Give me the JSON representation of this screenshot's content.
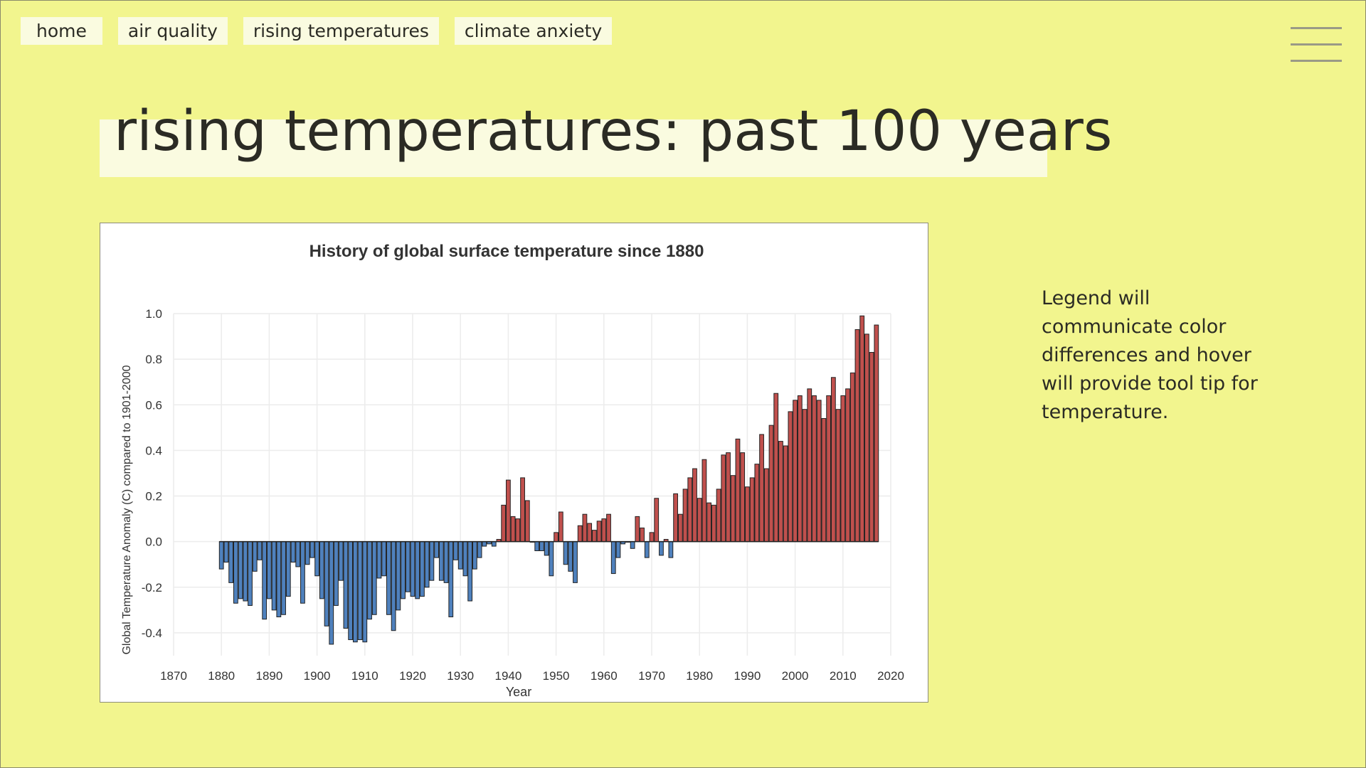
{
  "nav": {
    "items": [
      {
        "label": "home"
      },
      {
        "label": "air quality"
      },
      {
        "label": "rising temperatures"
      },
      {
        "label": "climate anxiety"
      }
    ]
  },
  "menu_icon": "hamburger-menu-icon",
  "page_title": "rising temperatures: past 100 years",
  "note": "Legend will communicate color differences and hover will provide tool tip for temperature.",
  "colors": {
    "background": "#f2f58e",
    "label_bg": "#fafbe0",
    "positive_bar": "#c0504d",
    "negative_bar": "#4f81bd"
  },
  "chart_data": {
    "type": "bar",
    "title": "History of global surface temperature since 1880",
    "xlabel": "Year",
    "ylabel": "Global Temperature Anomaly (C) compared to 1901-2000",
    "xlim": [
      1870,
      2020
    ],
    "ylim": [
      -0.5,
      1.0
    ],
    "x_ticks": [
      1870,
      1880,
      1890,
      1900,
      1910,
      1920,
      1930,
      1940,
      1950,
      1960,
      1970,
      1980,
      1990,
      2000,
      2010,
      2020
    ],
    "y_ticks": [
      "1.0",
      "0.8",
      "0.6",
      "0.4",
      "0.2",
      "0.0",
      "-0.2",
      "-0.4"
    ],
    "grid": true,
    "start_year": 1880,
    "values": [
      -0.12,
      -0.09,
      -0.18,
      -0.27,
      -0.25,
      -0.26,
      -0.28,
      -0.13,
      -0.08,
      -0.34,
      -0.25,
      -0.3,
      -0.33,
      -0.32,
      -0.24,
      -0.09,
      -0.11,
      -0.27,
      -0.1,
      -0.07,
      -0.15,
      -0.25,
      -0.37,
      -0.45,
      -0.28,
      -0.17,
      -0.38,
      -0.43,
      -0.44,
      -0.43,
      -0.44,
      -0.34,
      -0.32,
      -0.16,
      -0.15,
      -0.32,
      -0.39,
      -0.3,
      -0.25,
      -0.22,
      -0.24,
      -0.25,
      -0.24,
      -0.2,
      -0.17,
      -0.07,
      -0.17,
      -0.18,
      -0.33,
      -0.08,
      -0.12,
      -0.15,
      -0.26,
      -0.12,
      -0.07,
      -0.02,
      -0.01,
      -0.02,
      0.01,
      0.16,
      0.27,
      0.11,
      0.1,
      0.28,
      0.18,
      0.0,
      -0.04,
      -0.04,
      -0.06,
      -0.15,
      0.04,
      0.13,
      -0.1,
      -0.13,
      -0.18,
      0.07,
      0.12,
      0.08,
      0.05,
      0.09,
      0.1,
      0.12,
      -0.14,
      -0.07,
      -0.01,
      0.0,
      -0.03,
      0.11,
      0.06,
      -0.07,
      0.04,
      0.19,
      -0.06,
      0.01,
      -0.07,
      0.21,
      0.12,
      0.23,
      0.28,
      0.32,
      0.19,
      0.36,
      0.17,
      0.16,
      0.23,
      0.38,
      0.39,
      0.29,
      0.45,
      0.39,
      0.24,
      0.28,
      0.34,
      0.47,
      0.32,
      0.51,
      0.65,
      0.44,
      0.42,
      0.57,
      0.62,
      0.64,
      0.58,
      0.67,
      0.64,
      0.62,
      0.54,
      0.64,
      0.72,
      0.58,
      0.64,
      0.67,
      0.74,
      0.93,
      0.99,
      0.91,
      0.83,
      0.95
    ]
  }
}
